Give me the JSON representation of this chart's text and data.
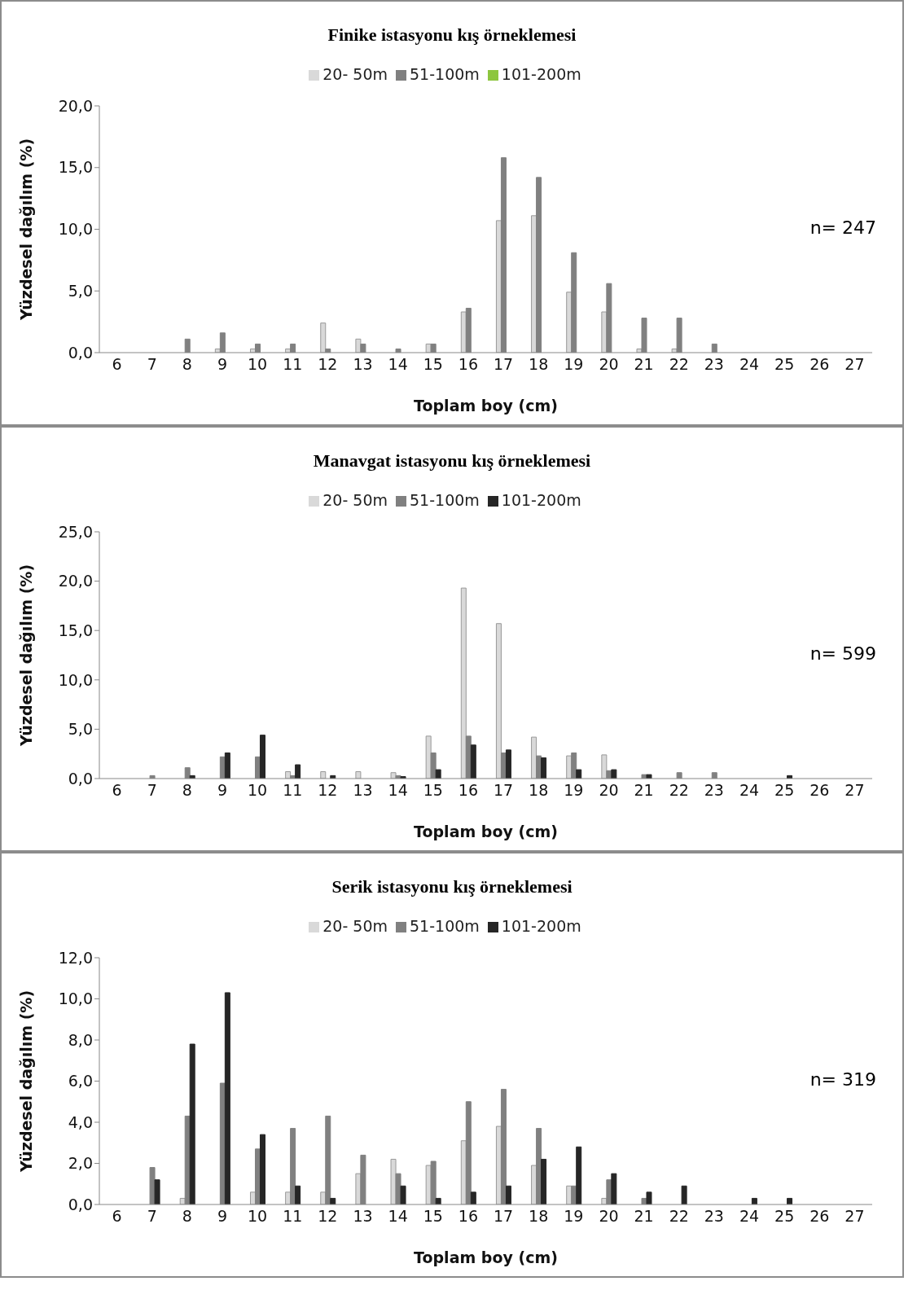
{
  "chart_data": [
    {
      "type": "bar",
      "title": "Finike istasyonu kış örneklemesi",
      "xlabel": "Toplam boy (cm)",
      "ylabel": "Yüzdesel dağılım (%)",
      "categories": [
        "6",
        "7",
        "8",
        "9",
        "10",
        "11",
        "12",
        "13",
        "14",
        "15",
        "16",
        "17",
        "18",
        "19",
        "20",
        "21",
        "22",
        "23",
        "24",
        "25",
        "26",
        "27"
      ],
      "ylim": [
        0,
        20
      ],
      "yticks": [
        {
          "value": 0,
          "label": "0,0"
        },
        {
          "value": 5,
          "label": "5,0"
        },
        {
          "value": 10,
          "label": "10,0"
        },
        {
          "value": 15,
          "label": "15,0"
        },
        {
          "value": 20,
          "label": "20,0"
        }
      ],
      "legend": "top",
      "grid": false,
      "annotations": [
        "n= 247"
      ],
      "series": [
        {
          "name": "20- 50m",
          "color": "#d9d9d9",
          "values": [
            0,
            0,
            0,
            0.3,
            0.3,
            0.3,
            2.4,
            1.1,
            0,
            0.7,
            3.3,
            10.7,
            11.1,
            4.9,
            3.3,
            0.3,
            0.3,
            0,
            0,
            0,
            0,
            0
          ]
        },
        {
          "name": "51-100m",
          "color": "#808080",
          "values": [
            0,
            0,
            1.1,
            1.6,
            0.7,
            0.7,
            0.3,
            0.7,
            0.3,
            0.7,
            3.6,
            15.8,
            14.2,
            8.1,
            5.6,
            2.8,
            2.8,
            0.7,
            0,
            0,
            0,
            0
          ]
        },
        {
          "name": "101-200m",
          "color": "#8dc63f",
          "values": [
            0,
            0,
            0,
            0,
            0,
            0,
            0,
            0,
            0,
            0,
            0,
            0,
            0,
            0,
            0,
            0,
            0,
            0,
            0,
            0,
            0,
            0
          ]
        }
      ]
    },
    {
      "type": "bar",
      "title": "Manavgat istasyonu kış örneklemesi",
      "xlabel": "Toplam boy (cm)",
      "ylabel": "Yüzdesel dağılım (%)",
      "categories": [
        "6",
        "7",
        "8",
        "9",
        "10",
        "11",
        "12",
        "13",
        "14",
        "15",
        "16",
        "17",
        "18",
        "19",
        "20",
        "21",
        "22",
        "23",
        "24",
        "25",
        "26",
        "27"
      ],
      "ylim": [
        0,
        25
      ],
      "yticks": [
        {
          "value": 0,
          "label": "0,0"
        },
        {
          "value": 5,
          "label": "5,0"
        },
        {
          "value": 10,
          "label": "10,0"
        },
        {
          "value": 15,
          "label": "15,0"
        },
        {
          "value": 20,
          "label": "20,0"
        },
        {
          "value": 25,
          "label": "25,0"
        }
      ],
      "legend": "top",
      "grid": false,
      "annotations": [
        "n= 599"
      ],
      "series": [
        {
          "name": "20- 50m",
          "color": "#d9d9d9",
          "values": [
            0,
            0,
            0,
            0,
            0,
            0.7,
            0.7,
            0.7,
            0.6,
            4.3,
            19.3,
            15.7,
            4.2,
            2.3,
            2.4,
            0,
            0,
            0,
            0,
            0,
            0,
            0
          ]
        },
        {
          "name": "51-100m",
          "color": "#808080",
          "values": [
            0,
            0.3,
            1.1,
            2.2,
            2.2,
            0.3,
            0,
            0,
            0.3,
            2.6,
            4.3,
            2.6,
            2.3,
            2.6,
            0.8,
            0.4,
            0.6,
            0.6,
            0,
            0,
            0,
            0
          ]
        },
        {
          "name": "101-200m",
          "color": "#262626",
          "values": [
            0,
            0,
            0.3,
            2.6,
            4.4,
            1.4,
            0.3,
            0,
            0.2,
            0.9,
            3.4,
            2.9,
            2.1,
            0.9,
            0.9,
            0.4,
            0,
            0,
            0,
            0.3,
            0,
            0
          ]
        }
      ]
    },
    {
      "type": "bar",
      "title": "Serik istasyonu kış örneklemesi",
      "xlabel": "Toplam boy (cm)",
      "ylabel": "Yüzdesel dağılım (%)",
      "categories": [
        "6",
        "7",
        "8",
        "9",
        "10",
        "11",
        "12",
        "13",
        "14",
        "15",
        "16",
        "17",
        "18",
        "19",
        "20",
        "21",
        "22",
        "23",
        "24",
        "25",
        "26",
        "27"
      ],
      "ylim": [
        0,
        12
      ],
      "yticks": [
        {
          "value": 0,
          "label": "0,0"
        },
        {
          "value": 2,
          "label": "2,0"
        },
        {
          "value": 4,
          "label": "4,0"
        },
        {
          "value": 6,
          "label": "6,0"
        },
        {
          "value": 8,
          "label": "8,0"
        },
        {
          "value": 10,
          "label": "10,0"
        },
        {
          "value": 12,
          "label": "12,0"
        }
      ],
      "legend": "top",
      "grid": false,
      "annotations": [
        "n= 319"
      ],
      "series": [
        {
          "name": "20- 50m",
          "color": "#d9d9d9",
          "values": [
            0,
            0,
            0.3,
            0,
            0.6,
            0.6,
            0.6,
            1.5,
            2.2,
            1.9,
            3.1,
            3.8,
            1.9,
            0.9,
            0.3,
            0,
            0,
            0,
            0,
            0,
            0,
            0
          ]
        },
        {
          "name": "51-100m",
          "color": "#808080",
          "values": [
            0,
            1.8,
            4.3,
            5.9,
            2.7,
            3.7,
            4.3,
            2.4,
            1.5,
            2.1,
            5.0,
            5.6,
            3.7,
            0.9,
            1.2,
            0.3,
            0,
            0,
            0,
            0,
            0,
            0
          ]
        },
        {
          "name": "101-200m",
          "color": "#262626",
          "values": [
            0,
            1.2,
            7.8,
            10.3,
            3.4,
            0.9,
            0.3,
            0,
            0.9,
            0.3,
            0.6,
            0.9,
            2.2,
            2.8,
            1.5,
            0.6,
            0.9,
            0,
            0.3,
            0.3,
            0,
            0
          ]
        }
      ]
    }
  ]
}
